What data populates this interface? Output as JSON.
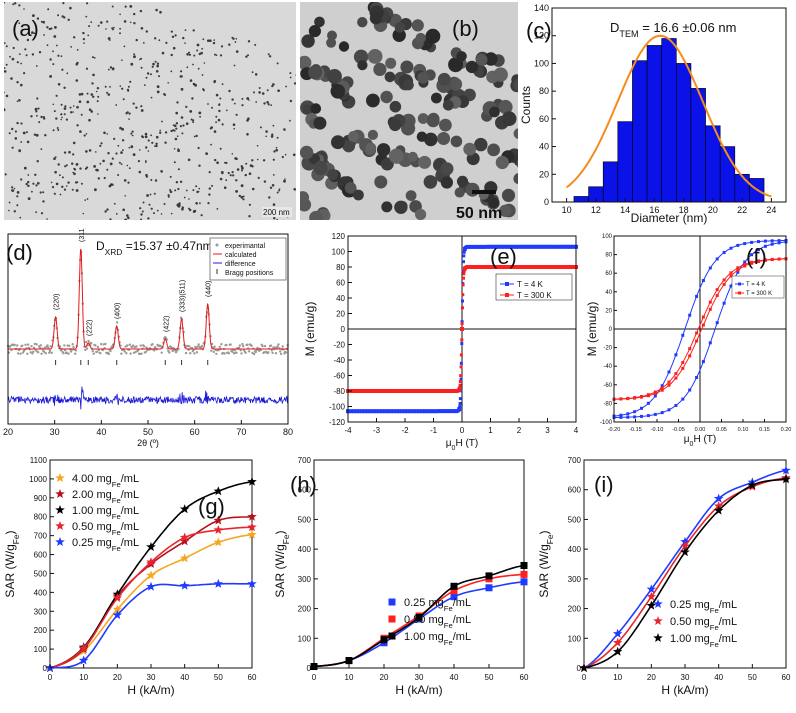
{
  "chart_data": [
    {
      "panel": "a",
      "type": "image",
      "panel_label": "(a)",
      "description_label": "200 nm"
    },
    {
      "panel": "b",
      "type": "image",
      "panel_label": "(b)",
      "description_label": "50 nm"
    },
    {
      "panel": "c",
      "type": "bar",
      "panel_label": "(c)",
      "annotation": "D",
      "annotation_sub": "TEM",
      "annotation_rest": " = 16.6 ±0.06 nm",
      "xlabel": "Diameter (nm)",
      "ylabel": "Counts",
      "xlim": [
        9,
        25
      ],
      "ylim": [
        0,
        140
      ],
      "xticks": [
        10,
        12,
        14,
        16,
        18,
        20,
        22,
        24
      ],
      "yticks": [
        0,
        20,
        40,
        60,
        80,
        100,
        120,
        140
      ],
      "categories": [
        11,
        12,
        13,
        14,
        15,
        16,
        17,
        18,
        19,
        20,
        21,
        22,
        23
      ],
      "values": [
        4,
        11,
        29,
        58,
        102,
        113,
        118,
        100,
        82,
        55,
        40,
        20,
        17
      ],
      "fit": {
        "mean": 16.4,
        "sigma": 2.9,
        "amp": 120
      }
    },
    {
      "panel": "d",
      "type": "line",
      "panel_label": "(d)",
      "annotation": "D",
      "annotation_sub": "XRD",
      "annotation_rest": " =15.37 ±0.47nm",
      "xlabel": "2θ (º)",
      "xlim": [
        20,
        80
      ],
      "xticks": [
        20,
        30,
        40,
        50,
        60,
        70,
        80
      ],
      "legend": [
        "experimantal",
        "calculated",
        "difference",
        "Bragg positions"
      ],
      "peaks": [
        {
          "x": 30.2,
          "h": 0.32,
          "label": "(220)"
        },
        {
          "x": 35.6,
          "h": 1.0,
          "label": "(311)"
        },
        {
          "x": 37.2,
          "h": 0.06,
          "label": "(222)"
        },
        {
          "x": 43.3,
          "h": 0.23,
          "label": "(400)"
        },
        {
          "x": 53.7,
          "h": 0.1,
          "label": "(422)"
        },
        {
          "x": 57.2,
          "h": 0.3,
          "label": "(333)(511)"
        },
        {
          "x": 62.8,
          "h": 0.45,
          "label": "(440)"
        }
      ]
    },
    {
      "panel": "e",
      "type": "line",
      "panel_label": "(e)",
      "xlabel": "μ",
      "xlabel_sub": "0",
      "xlabel_rest": "H (T)",
      "ylabel": "M (emu/g)",
      "xlim": [
        -4,
        4
      ],
      "ylim": [
        -120,
        120
      ],
      "xticks": [
        -4,
        -3,
        -2,
        -1,
        0,
        1,
        2,
        3,
        4
      ],
      "yticks": [
        -120,
        -100,
        -80,
        -60,
        -40,
        -20,
        0,
        20,
        40,
        60,
        80,
        100,
        120
      ],
      "series": [
        {
          "name": "T =    4 K",
          "ms": 106,
          "color": "#1f3bff"
        },
        {
          "name": "T = 300 K",
          "ms": 80,
          "color": "#ff1f1f"
        }
      ]
    },
    {
      "panel": "f",
      "type": "line",
      "panel_label": "(f)",
      "xlabel": "μ",
      "xlabel_sub": "0",
      "xlabel_rest": "H (T)",
      "ylabel": "M (emu/g)",
      "xlim": [
        -0.2,
        0.2
      ],
      "ylim": [
        -100,
        100
      ],
      "xticks": [
        "-0.20",
        "-0.15",
        "-0.10",
        "-0.05",
        "0.00",
        "0.05",
        "0.10",
        "0.15",
        "0.20"
      ],
      "yticks": [
        -100,
        -80,
        -60,
        -40,
        -20,
        0,
        20,
        40,
        60,
        80,
        100
      ],
      "series": [
        {
          "name": "T =    4 K",
          "ms": 106,
          "hc": 0.035,
          "color": "#1f3bff"
        },
        {
          "name": "T = 300 K",
          "ms": 80,
          "hc": 0.004,
          "color": "#ff1f1f"
        }
      ]
    },
    {
      "panel": "g",
      "type": "scatter",
      "panel_label": "(g)",
      "xlabel": "H (kA/m)",
      "ylabel": "SAR (W/g",
      "ylabel_sub": "Fe",
      "ylabel_rest": ")",
      "xlim": [
        0,
        60
      ],
      "ylim": [
        0,
        1100
      ],
      "xticks": [
        0,
        10,
        20,
        30,
        40,
        50,
        60
      ],
      "yticks": [
        0,
        100,
        200,
        300,
        400,
        500,
        600,
        700,
        800,
        900,
        1000,
        1100
      ],
      "x": [
        0,
        10,
        20,
        30,
        40,
        50,
        60
      ],
      "marker": "star",
      "series": [
        {
          "name": "4.00 mg",
          "sub": "Fe",
          "unit": "/mL",
          "color": "#f5a623",
          "values": [
            0,
            90,
            310,
            490,
            580,
            665,
            705
          ]
        },
        {
          "name": "2.00 mg",
          "sub": "Fe",
          "unit": "/mL",
          "color": "#b5121b",
          "values": [
            0,
            100,
            380,
            550,
            670,
            780,
            800
          ]
        },
        {
          "name": "1.00 mg",
          "sub": "Fe",
          "unit": "/mL",
          "color": "#000000",
          "values": [
            0,
            110,
            390,
            640,
            840,
            935,
            985
          ]
        },
        {
          "name": "0.50 mg",
          "sub": "Fe",
          "unit": "/mL",
          "color": "#e8262f",
          "values": [
            0,
            105,
            370,
            560,
            690,
            730,
            745
          ]
        },
        {
          "name": "0.25 mg",
          "sub": "Fe",
          "unit": "/mL",
          "color": "#1f3bff",
          "values": [
            0,
            40,
            280,
            430,
            435,
            445,
            445
          ]
        }
      ]
    },
    {
      "panel": "h",
      "type": "scatter",
      "panel_label": "(h)",
      "xlabel": "H (kA/m)",
      "ylabel": "SAR (W/g",
      "ylabel_sub": "Fe",
      "ylabel_rest": ")",
      "xlim": [
        0,
        60
      ],
      "ylim": [
        0,
        700
      ],
      "xticks": [
        0,
        10,
        20,
        30,
        40,
        50,
        60
      ],
      "yticks": [
        0,
        100,
        200,
        300,
        400,
        500,
        600,
        700
      ],
      "x": [
        0,
        10,
        20,
        30,
        40,
        50,
        60
      ],
      "marker": "square",
      "series": [
        {
          "name": "0.25 mg",
          "sub": "Fe",
          "unit": "/mL",
          "color": "#1f3bff",
          "values": [
            5,
            25,
            85,
            165,
            240,
            270,
            290
          ]
        },
        {
          "name": "0.50 mg",
          "sub": "Fe",
          "unit": "/mL",
          "color": "#ff1f1f",
          "values": [
            5,
            25,
            100,
            175,
            260,
            300,
            315
          ]
        },
        {
          "name": "1.00 mg",
          "sub": "Fe",
          "unit": "/mL",
          "color": "#000000",
          "values": [
            5,
            25,
            95,
            170,
            275,
            310,
            345
          ]
        }
      ]
    },
    {
      "panel": "i",
      "type": "scatter",
      "panel_label": "(i)",
      "xlabel": "H (kA/m)",
      "ylabel": "SAR (W/g",
      "ylabel_sub": "Fe",
      "ylabel_rest": ")",
      "xlim": [
        0,
        60
      ],
      "ylim": [
        0,
        700
      ],
      "xticks": [
        0,
        10,
        20,
        30,
        40,
        50,
        60
      ],
      "yticks": [
        0,
        100,
        200,
        300,
        400,
        500,
        600,
        700
      ],
      "x": [
        0,
        10,
        20,
        30,
        40,
        50,
        60
      ],
      "marker": "star",
      "series": [
        {
          "name": "0.25 mg",
          "sub": "Fe",
          "unit": "/mL",
          "color": "#1f3bff",
          "values": [
            0,
            115,
            265,
            425,
            570,
            625,
            665
          ]
        },
        {
          "name": "0.50 mg",
          "sub": "Fe",
          "unit": "/mL",
          "color": "#e8262f",
          "values": [
            0,
            85,
            240,
            410,
            545,
            610,
            640
          ]
        },
        {
          "name": "1.00 mg",
          "sub": "Fe",
          "unit": "/mL",
          "color": "#000000",
          "values": [
            0,
            55,
            210,
            390,
            530,
            615,
            635
          ]
        }
      ]
    }
  ]
}
